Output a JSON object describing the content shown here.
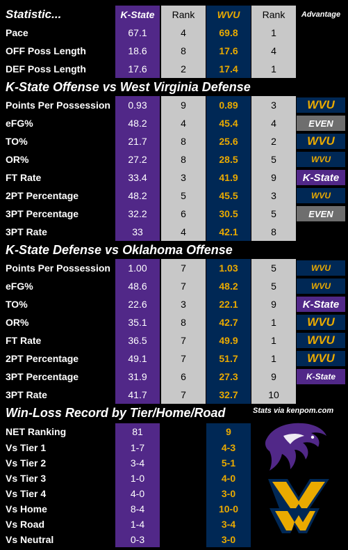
{
  "header": {
    "stat": "Statistic...",
    "ks": "K-State",
    "rank1": "Rank",
    "wv": "WVU",
    "rank2": "Rank",
    "adv": "Advantage"
  },
  "pace_rows": [
    {
      "label": "Pace",
      "ks": "67.1",
      "ks_rank": "4",
      "wv": "69.8",
      "wv_rank": "1"
    },
    {
      "label": "OFF Poss Length",
      "ks": "18.6",
      "ks_rank": "8",
      "wv": "17.6",
      "wv_rank": "4"
    },
    {
      "label": "DEF Poss Length",
      "ks": "17.6",
      "ks_rank": "2",
      "wv": "17.4",
      "wv_rank": "1"
    }
  ],
  "section1": "K-State Offense vs West Virginia Defense",
  "offense_rows": [
    {
      "label": "Points Per Possession",
      "ks": "0.93",
      "ks_rank": "9",
      "wv": "0.89",
      "wv_rank": "3",
      "adv": "WVU"
    },
    {
      "label": "eFG%",
      "ks": "48.2",
      "ks_rank": "4",
      "wv": "45.4",
      "wv_rank": "4",
      "adv": "EVEN"
    },
    {
      "label": "TO%",
      "ks": "21.7",
      "ks_rank": "8",
      "wv": "25.6",
      "wv_rank": "2",
      "adv": "WVU"
    },
    {
      "label": "OR%",
      "ks": "27.2",
      "ks_rank": "8",
      "wv": "28.5",
      "wv_rank": "5",
      "adv": "WVU"
    },
    {
      "label": "FT Rate",
      "ks": "33.4",
      "ks_rank": "3",
      "wv": "41.9",
      "wv_rank": "9",
      "adv": "K-State"
    },
    {
      "label": "2PT Percentage",
      "ks": "48.2",
      "ks_rank": "5",
      "wv": "45.5",
      "wv_rank": "3",
      "adv": "WVU"
    },
    {
      "label": "3PT Percentage",
      "ks": "32.2",
      "ks_rank": "6",
      "wv": "30.5",
      "wv_rank": "5",
      "adv": "EVEN"
    },
    {
      "label": "3PT Rate",
      "ks": "33",
      "ks_rank": "4",
      "wv": "42.1",
      "wv_rank": "8",
      "adv": ""
    }
  ],
  "section2": "K-State Defense vs Oklahoma Offense",
  "defense_rows": [
    {
      "label": "Points Per Possession",
      "ks": "1.00",
      "ks_rank": "7",
      "wv": "1.03",
      "wv_rank": "5",
      "adv": "WVU"
    },
    {
      "label": "eFG%",
      "ks": "48.6",
      "ks_rank": "7",
      "wv": "48.2",
      "wv_rank": "5",
      "adv": "WVU"
    },
    {
      "label": "TO%",
      "ks": "22.6",
      "ks_rank": "3",
      "wv": "22.1",
      "wv_rank": "9",
      "adv": "K-State"
    },
    {
      "label": "OR%",
      "ks": "35.1",
      "ks_rank": "8",
      "wv": "42.7",
      "wv_rank": "1",
      "adv": "WVU"
    },
    {
      "label": "FT Rate",
      "ks": "36.5",
      "ks_rank": "7",
      "wv": "49.9",
      "wv_rank": "1",
      "adv": "WVU"
    },
    {
      "label": "2PT Percentage",
      "ks": "49.1",
      "ks_rank": "7",
      "wv": "51.7",
      "wv_rank": "1",
      "adv": "WVU"
    },
    {
      "label": "3PT Percentage",
      "ks": "31.9",
      "ks_rank": "6",
      "wv": "27.3",
      "wv_rank": "9",
      "adv": "K-State"
    },
    {
      "label": "3PT Rate",
      "ks": "41.7",
      "ks_rank": "7",
      "wv": "32.7",
      "wv_rank": "10",
      "adv": ""
    }
  ],
  "section3": "Win-Loss Record by Tier/Home/Road",
  "credit": "Stats via kenpom.com",
  "record_rows": [
    {
      "label": "NET Ranking",
      "ks": "81",
      "wv": "9"
    },
    {
      "label": "Vs Tier 1",
      "ks": "1-7",
      "wv": "4-3"
    },
    {
      "label": "Vs Tier 2",
      "ks": "3-4",
      "wv": "5-1"
    },
    {
      "label": "Vs Tier 3",
      "ks": "1-0",
      "wv": "4-0"
    },
    {
      "label": "Vs Tier 4",
      "ks": "4-0",
      "wv": "3-0"
    },
    {
      "label": "Vs Home",
      "ks": "8-4",
      "wv": "10-0"
    },
    {
      "label": "Vs Road",
      "ks": "1-4",
      "wv": "3-4"
    },
    {
      "label": "Vs Neutral",
      "ks": "0-3",
      "wv": "3-0"
    }
  ],
  "colors": {
    "kstate_purple": "#512888",
    "wvu_navy": "#002855",
    "wvu_gold": "#eaaa00",
    "rank_gray": "#c8c8c8",
    "even_gray": "#6e6e6e"
  },
  "logos": [
    "kstate-powercat-logo",
    "wvu-flying-wv-logo"
  ]
}
